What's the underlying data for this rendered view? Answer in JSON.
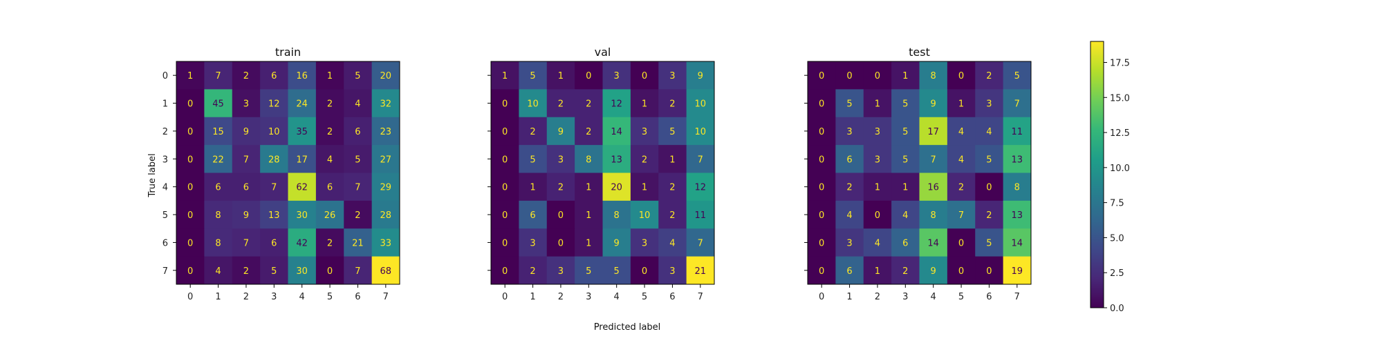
{
  "chart_data": {
    "type": "heatmap",
    "xlabel": "Predicted label",
    "ylabel": "True label",
    "class_labels": [
      "0",
      "1",
      "2",
      "3",
      "4",
      "5",
      "6",
      "7"
    ],
    "panels": [
      {
        "title": "train",
        "matrix": [
          [
            1,
            7,
            2,
            6,
            16,
            1,
            5,
            20
          ],
          [
            0,
            45,
            3,
            12,
            24,
            2,
            4,
            32
          ],
          [
            0,
            15,
            9,
            10,
            35,
            2,
            6,
            23
          ],
          [
            0,
            22,
            7,
            28,
            17,
            4,
            5,
            27
          ],
          [
            0,
            6,
            6,
            7,
            62,
            6,
            7,
            29
          ],
          [
            0,
            8,
            9,
            13,
            30,
            26,
            2,
            28
          ],
          [
            0,
            8,
            7,
            6,
            42,
            2,
            21,
            33
          ],
          [
            0,
            4,
            2,
            5,
            30,
            0,
            7,
            68
          ]
        ]
      },
      {
        "title": "val",
        "matrix": [
          [
            1,
            5,
            1,
            0,
            3,
            0,
            3,
            9
          ],
          [
            0,
            10,
            2,
            2,
            12,
            1,
            2,
            10
          ],
          [
            0,
            2,
            9,
            2,
            14,
            3,
            5,
            10
          ],
          [
            0,
            5,
            3,
            8,
            13,
            2,
            1,
            7
          ],
          [
            0,
            1,
            2,
            1,
            20,
            1,
            2,
            12
          ],
          [
            0,
            6,
            0,
            1,
            8,
            10,
            2,
            11
          ],
          [
            0,
            3,
            0,
            1,
            9,
            3,
            4,
            7
          ],
          [
            0,
            2,
            3,
            5,
            5,
            0,
            3,
            21
          ]
        ]
      },
      {
        "title": "test",
        "matrix": [
          [
            0,
            0,
            0,
            1,
            8,
            0,
            2,
            5
          ],
          [
            0,
            5,
            1,
            5,
            9,
            1,
            3,
            7
          ],
          [
            0,
            3,
            3,
            5,
            17,
            4,
            4,
            11
          ],
          [
            0,
            6,
            3,
            5,
            7,
            4,
            5,
            13
          ],
          [
            0,
            2,
            1,
            1,
            16,
            2,
            0,
            8
          ],
          [
            0,
            4,
            0,
            4,
            8,
            7,
            2,
            13
          ],
          [
            0,
            3,
            4,
            6,
            14,
            0,
            5,
            14
          ],
          [
            0,
            6,
            1,
            2,
            9,
            0,
            0,
            19
          ]
        ]
      }
    ],
    "colorbar": {
      "vmin": 0,
      "vmax": 19,
      "ticks": [
        0.0,
        2.5,
        5.0,
        7.5,
        10.0,
        12.5,
        15.0,
        17.5
      ],
      "tick_labels": [
        "0.0",
        "2.5",
        "5.0",
        "7.5",
        "10.0",
        "12.5",
        "15.0",
        "17.5"
      ],
      "colormap": "viridis"
    },
    "colors": {
      "text_on_dark": "#fde725",
      "text_on_light": "#440154",
      "colormap_stops": [
        "#440154",
        "#482878",
        "#3e4989",
        "#31688e",
        "#26828e",
        "#1f9e89",
        "#35b779",
        "#6ece58",
        "#b5de2b",
        "#fde725"
      ]
    }
  }
}
